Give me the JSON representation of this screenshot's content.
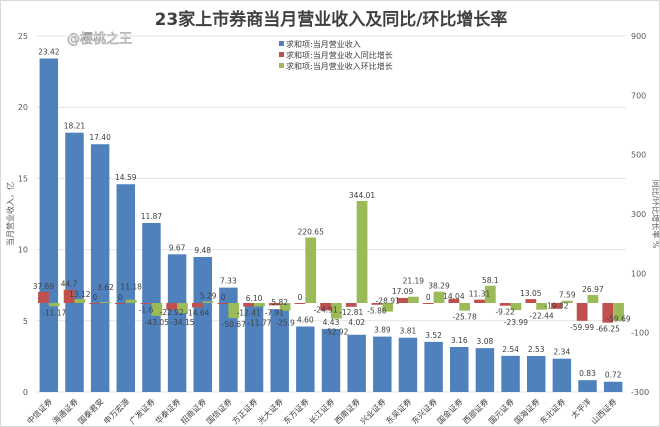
{
  "watermark": "@樱桃之王",
  "chart_data": {
    "type": "bar",
    "title": "23家上市券商当月营业收入及同比/环比增长率",
    "ylabel": "当月营业收入，亿",
    "y2label": "同比/环比增长率 %",
    "ylim": [
      0,
      25
    ],
    "y2lim": [
      -300,
      900
    ],
    "yticks": [
      0,
      5,
      10,
      15,
      20,
      25
    ],
    "y2ticks": [
      -300,
      -100,
      100,
      300,
      500,
      700,
      900
    ],
    "grid": true,
    "legend_position": "top-center",
    "categories": [
      "中信证券",
      "海通证券",
      "国泰君安",
      "申万宏源",
      "广发证券",
      "华泰证券",
      "招商证券",
      "国信证券",
      "方正证券",
      "光大证券",
      "东方证券",
      "长江证券",
      "西南证券",
      "兴业证券",
      "东吴证券",
      "东兴证券",
      "国金证券",
      "西部证券",
      "国元证券",
      "国海证券",
      "东北证券",
      "太平洋",
      "山西证券"
    ],
    "series": [
      {
        "name": "求和项:当月营业收入",
        "axis": "left",
        "color": "#4f81bd",
        "values": [
          23.42,
          18.21,
          17.4,
          14.59,
          11.87,
          9.67,
          9.48,
          7.33,
          6.1,
          5.82,
          4.6,
          4.43,
          4.02,
          3.89,
          3.81,
          3.52,
          3.16,
          3.08,
          2.54,
          2.53,
          2.34,
          0.83,
          0.72
        ]
      },
      {
        "name": "求和项:当月营业收入同比增长",
        "axis": "right",
        "color": "#c0504d",
        "values": [
          37.69,
          44.7,
          0,
          0,
          -1.6,
          -22.92,
          -14.64,
          0,
          -12.41,
          -7.91,
          0,
          -24.91,
          -12.81,
          -5.86,
          17.09,
          0,
          14.04,
          11.31,
          -9.22,
          13.05,
          -19.32,
          -59.99,
          -66.25
        ]
      },
      {
        "name": "求和项:当月营业收入环比增长",
        "axis": "right",
        "color": "#9bbb59",
        "values": [
          -11.17,
          13.12,
          3.62,
          11.18,
          -43.05,
          -34.15,
          5.29,
          -50.67,
          -11.77,
          -25.9,
          220.65,
          -52.92,
          344.01,
          -28.91,
          21.19,
          38.29,
          -25.78,
          58.1,
          -23.99,
          -22.44,
          7.59,
          26.97,
          -59.69
        ]
      }
    ]
  }
}
